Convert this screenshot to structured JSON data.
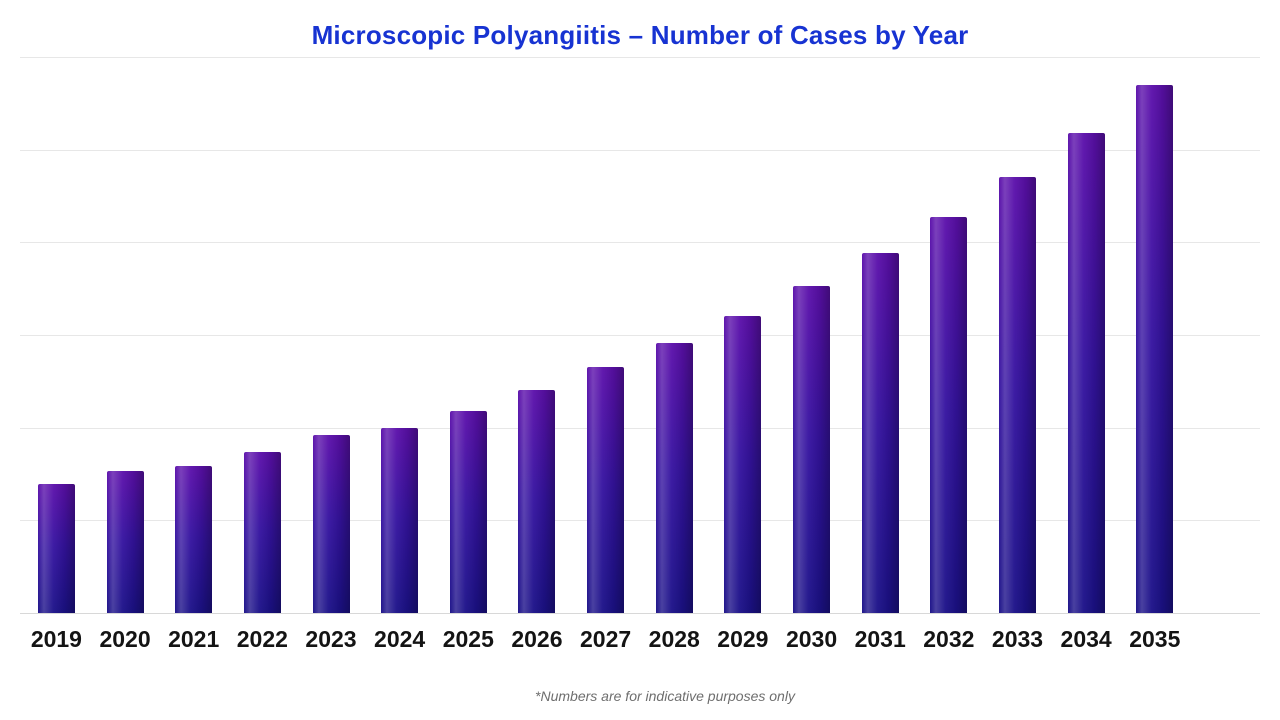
{
  "header": {
    "title": "Microscopic Polyangiitis – Number of Cases by Year"
  },
  "footnote": {
    "text": "*Numbers are for indicative purposes only"
  },
  "colors": {
    "title_text": "#1733D2",
    "bar_top": "#5C10AB",
    "bar_mid": "#3513A0",
    "bar_bottom": "#1B1188",
    "gridline": "#E7E7E7",
    "axis_line": "#D8D8D8",
    "tick_label": "#141414",
    "footnote_text": "#6E6E6E",
    "background": "#FFFFFF"
  },
  "chart_data": {
    "type": "bar",
    "title": "Microscopic Polyangiitis – Number of Cases by Year",
    "categories": [
      "2019",
      "2020",
      "2021",
      "2022",
      "2023",
      "2024",
      "2025",
      "2026",
      "2027",
      "2028",
      "2029",
      "2030",
      "2031",
      "2032",
      "2033",
      "2034",
      "2035"
    ],
    "values": [
      23.2,
      25.5,
      26.4,
      29.0,
      32.1,
      33.2,
      36.4,
      40.1,
      44.2,
      48.6,
      53.4,
      58.8,
      64.8,
      71.3,
      78.5,
      86.4,
      95.0
    ],
    "value_unit": "percent of y-axis height (y-axis has no numeric labels; estimated from gridlines)",
    "xlabel": "",
    "ylabel": "",
    "ylim": [
      0,
      100
    ],
    "grid": "horizontal",
    "gridline_intervals": 6,
    "legend": "none",
    "bar_style": "vertical gradient purple to navy with cylindrical sheen",
    "annotations": [
      "*Numbers are for indicative purposes only"
    ]
  }
}
